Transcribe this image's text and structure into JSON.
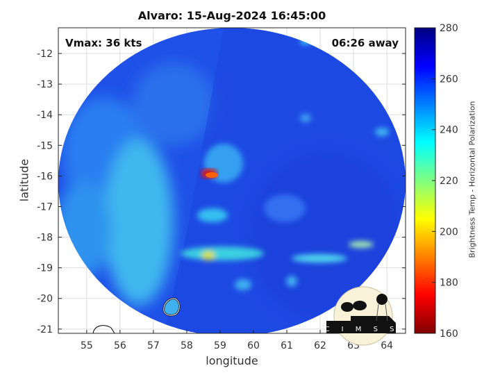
{
  "title": "Alvaro: 15-Aug-2024 16:45:00",
  "annotations": {
    "vmax": "Vmax: 36 kts",
    "time_away": "06:26 away"
  },
  "axes": {
    "xlabel": "longitude",
    "ylabel": "latitude",
    "xlim": [
      54.15,
      64.56
    ],
    "ylim": [
      -21.14,
      -11.16
    ],
    "xticks": [
      "55",
      "56",
      "57",
      "58",
      "59",
      "60",
      "61",
      "62",
      "63",
      "64"
    ],
    "yticks": [
      "-12",
      "-13",
      "-14",
      "-15",
      "-16",
      "-17",
      "-18",
      "-19",
      "-20",
      "-21"
    ],
    "grid": true
  },
  "colorbar": {
    "label": "Brightness Temp - Horizontal Polarization",
    "range": [
      160,
      280
    ],
    "ticks": [
      "160",
      "180",
      "200",
      "220",
      "240",
      "260",
      "280"
    ],
    "colormap": "jet"
  },
  "logo": {
    "text": "CIMSS"
  },
  "colors": {
    "background_field": "#1f4fe6",
    "warm_core": "#e01010",
    "cool_band": "#30c8e8"
  }
}
